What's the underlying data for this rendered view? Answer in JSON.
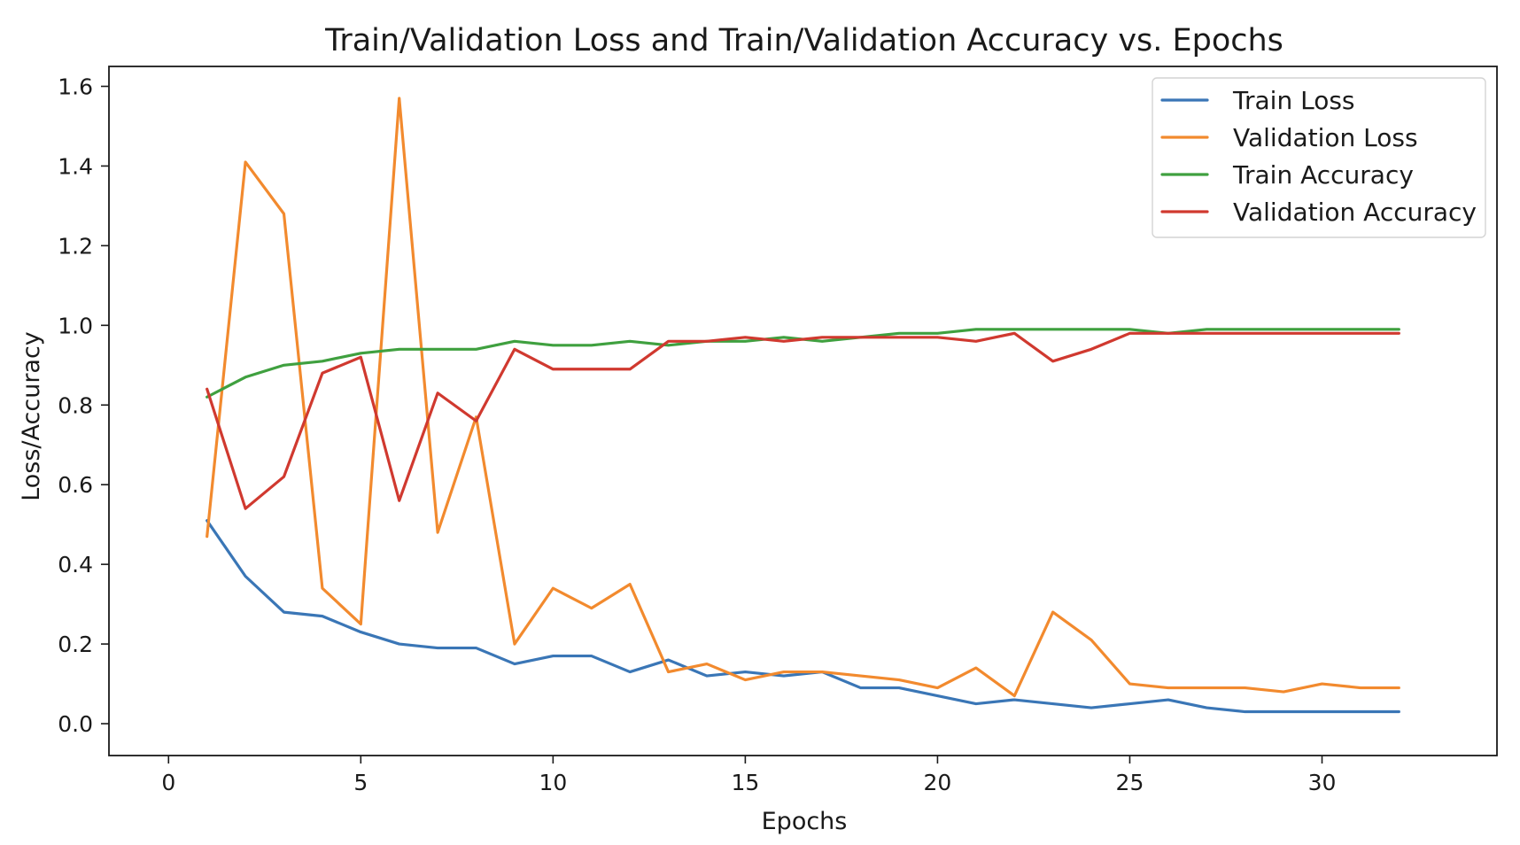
{
  "chart_data": {
    "type": "line",
    "title": "Train/Validation Loss and Train/Validation Accuracy vs. Epochs",
    "xlabel": "Epochs",
    "ylabel": "Loss/Accuracy",
    "xlim": [
      -1.55,
      34.55
    ],
    "ylim": [
      -0.08,
      1.65
    ],
    "xticks": [
      0,
      5,
      10,
      15,
      20,
      25,
      30
    ],
    "yticks": [
      0.0,
      0.2,
      0.4,
      0.6,
      0.8,
      1.0,
      1.2,
      1.4,
      1.6
    ],
    "xtick_labels": [
      "0",
      "5",
      "10",
      "15",
      "20",
      "25",
      "30"
    ],
    "ytick_labels": [
      "0.0",
      "0.2",
      "0.4",
      "0.6",
      "0.8",
      "1.0",
      "1.2",
      "1.4",
      "1.6"
    ],
    "grid": false,
    "legend_position": "top-right",
    "x": [
      1,
      2,
      3,
      4,
      5,
      6,
      7,
      8,
      9,
      10,
      11,
      12,
      13,
      14,
      15,
      16,
      17,
      18,
      19,
      20,
      21,
      22,
      23,
      24,
      25,
      26,
      27,
      28,
      29,
      30,
      31,
      32
    ],
    "series": [
      {
        "name": "Train Loss",
        "color": "#3a76b6",
        "values": [
          0.51,
          0.37,
          0.28,
          0.27,
          0.23,
          0.2,
          0.19,
          0.19,
          0.15,
          0.17,
          0.17,
          0.13,
          0.16,
          0.12,
          0.13,
          0.12,
          0.13,
          0.09,
          0.09,
          0.07,
          0.05,
          0.06,
          0.05,
          0.04,
          0.05,
          0.06,
          0.04,
          0.03,
          0.03,
          0.03,
          0.03,
          0.03
        ]
      },
      {
        "name": "Validation Loss",
        "color": "#f28a2e",
        "values": [
          0.47,
          1.41,
          1.28,
          0.34,
          0.25,
          1.57,
          0.48,
          0.77,
          0.2,
          0.34,
          0.29,
          0.35,
          0.13,
          0.15,
          0.11,
          0.13,
          0.13,
          0.12,
          0.11,
          0.09,
          0.14,
          0.07,
          0.28,
          0.21,
          0.1,
          0.09,
          0.09,
          0.09,
          0.08,
          0.1,
          0.09,
          0.09
        ]
      },
      {
        "name": "Train Accuracy",
        "color": "#3fa03f",
        "values": [
          0.82,
          0.87,
          0.9,
          0.91,
          0.93,
          0.94,
          0.94,
          0.94,
          0.96,
          0.95,
          0.95,
          0.96,
          0.95,
          0.96,
          0.96,
          0.97,
          0.96,
          0.97,
          0.98,
          0.98,
          0.99,
          0.99,
          0.99,
          0.99,
          0.99,
          0.98,
          0.99,
          0.99,
          0.99,
          0.99,
          0.99,
          0.99
        ]
      },
      {
        "name": "Validation Accuracy",
        "color": "#d0392f",
        "values": [
          0.84,
          0.54,
          0.62,
          0.88,
          0.92,
          0.56,
          0.83,
          0.76,
          0.94,
          0.89,
          0.89,
          0.89,
          0.96,
          0.96,
          0.97,
          0.96,
          0.97,
          0.97,
          0.97,
          0.97,
          0.96,
          0.98,
          0.91,
          0.94,
          0.98,
          0.98,
          0.98,
          0.98,
          0.98,
          0.98,
          0.98,
          0.98
        ]
      }
    ]
  },
  "colors": {
    "axis": "#1a1a1a",
    "legend_border": "#d4d4d4",
    "background": "#ffffff"
  }
}
